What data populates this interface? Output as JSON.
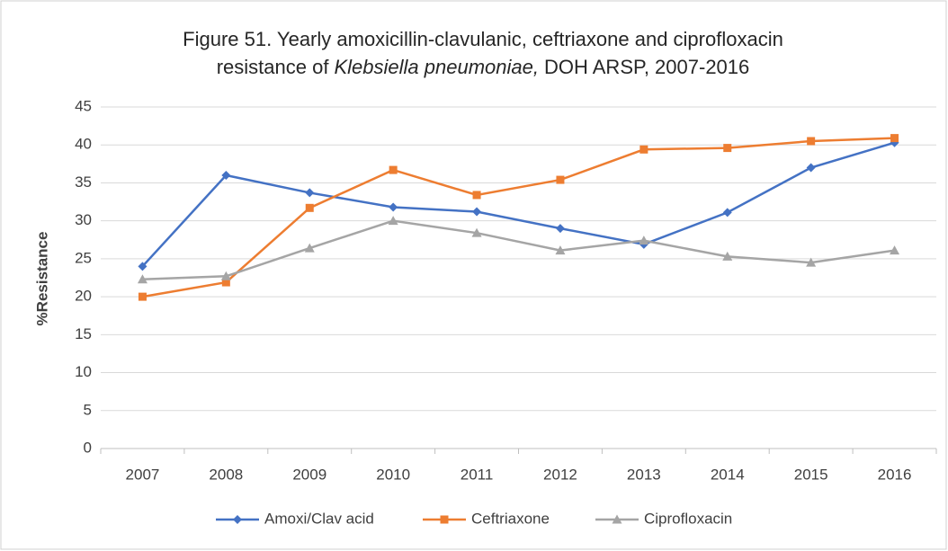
{
  "chart_data": {
    "type": "line",
    "title": {
      "line1": "Figure 51. Yearly amoxicillin-clavulanic, ceftriaxone and ciprofloxacin",
      "line2": [
        "resistance of",
        "Klebsiella pneumoniae,",
        "DOH ARSP, 2007-2016"
      ]
    },
    "y_label": "%Resistance",
    "categories": [
      "2007",
      "2008",
      "2009",
      "2010",
      "2011",
      "2012",
      "2013",
      "2014",
      "2015",
      "2016"
    ],
    "series": [
      {
        "name": "Amoxi/Clav acid",
        "color": "#4472c4",
        "marker": "diamond",
        "values": [
          24,
          36,
          33.7,
          31.8,
          31.2,
          29,
          26.9,
          31.1,
          37,
          40.3
        ]
      },
      {
        "name": "Ceftriaxone",
        "color": "#ed7d31",
        "marker": "square",
        "values": [
          20,
          21.9,
          31.7,
          36.7,
          33.4,
          35.4,
          39.4,
          39.6,
          40.5,
          40.9
        ]
      },
      {
        "name": "Ciprofloxacin",
        "color": "#a5a5a5",
        "marker": "triangle",
        "values": [
          22.3,
          22.7,
          26.4,
          30,
          28.4,
          26.1,
          27.4,
          25.3,
          24.5,
          26.1
        ]
      }
    ],
    "ylim": [
      0,
      45
    ],
    "yticks": [
      0,
      5,
      10,
      15,
      20,
      25,
      30,
      35,
      40,
      45
    ],
    "grid": true,
    "legend": "bottom"
  }
}
